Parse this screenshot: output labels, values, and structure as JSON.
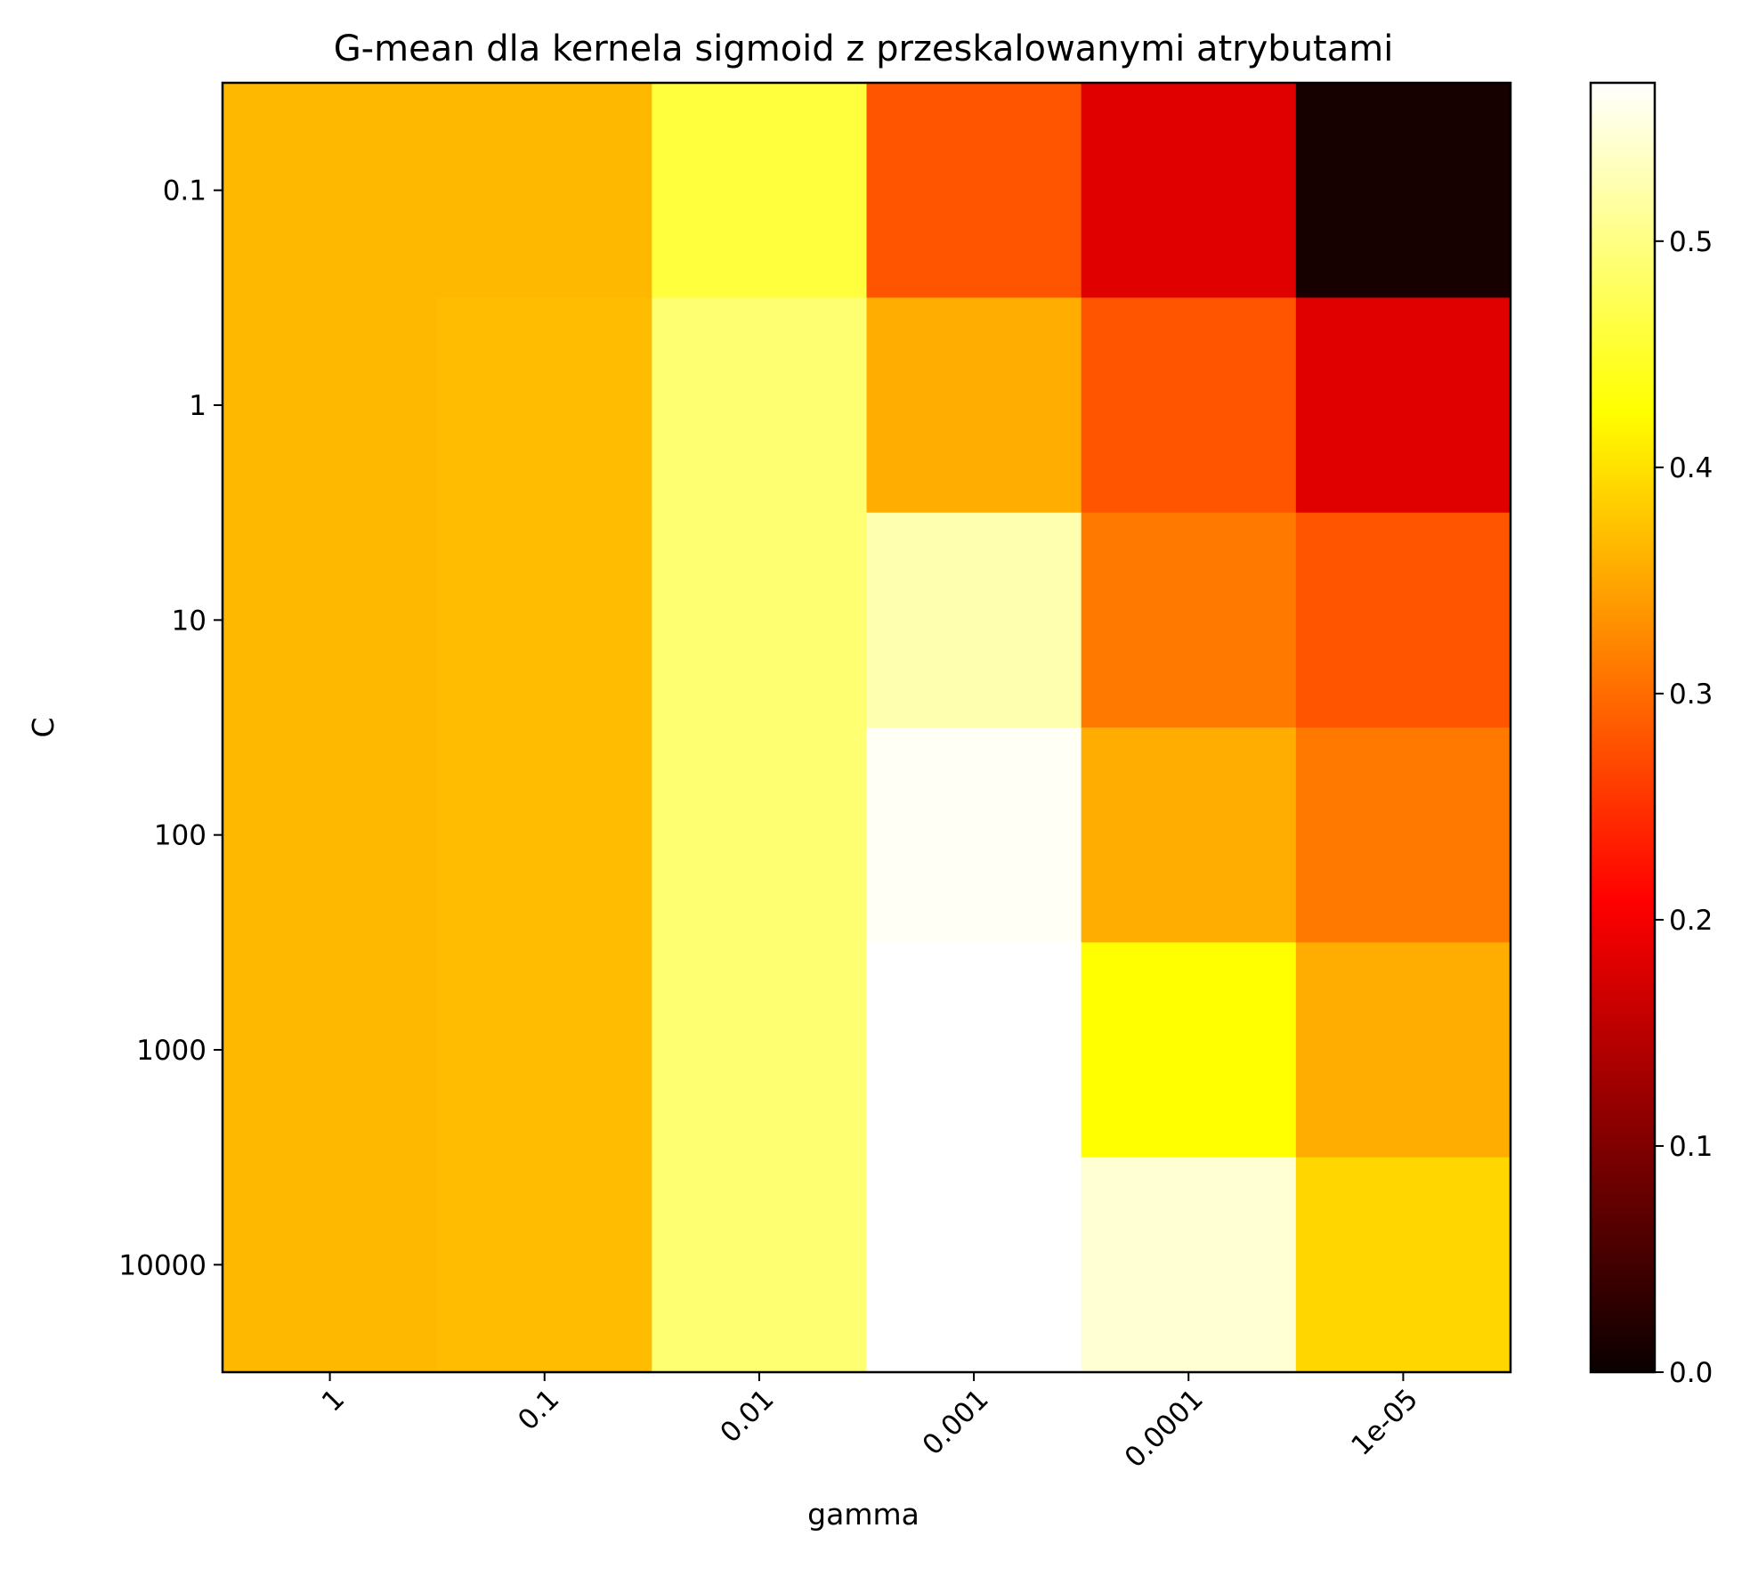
{
  "chart_data": {
    "type": "heatmap",
    "title": "G-mean dla kernela sigmoid z przeskalowanymi atrybutami",
    "xlabel": "gamma",
    "ylabel": "C",
    "x_categories": [
      "1",
      "0.1",
      "0.01",
      "0.001",
      "0.0001",
      "1e-05"
    ],
    "y_categories": [
      "0.1",
      "1",
      "10",
      "100",
      "1000",
      "10000"
    ],
    "values": [
      [
        0.365,
        0.365,
        0.46,
        0.28,
        0.175,
        0.01
      ],
      [
        0.365,
        0.368,
        0.49,
        0.355,
        0.28,
        0.175
      ],
      [
        0.365,
        0.368,
        0.49,
        0.525,
        0.31,
        0.28
      ],
      [
        0.365,
        0.368,
        0.49,
        0.565,
        0.355,
        0.31
      ],
      [
        0.365,
        0.368,
        0.49,
        0.57,
        0.425,
        0.355
      ],
      [
        0.365,
        0.368,
        0.49,
        0.57,
        0.545,
        0.39
      ]
    ],
    "colormap": "hot",
    "colorbar": {
      "vmin": 0.0,
      "vmax": 0.57,
      "ticks": [
        "0.0",
        "0.1",
        "0.2",
        "0.3",
        "0.4",
        "0.5"
      ],
      "tick_values": [
        0.0,
        0.1,
        0.2,
        0.3,
        0.4,
        0.5
      ]
    },
    "grid": false
  }
}
